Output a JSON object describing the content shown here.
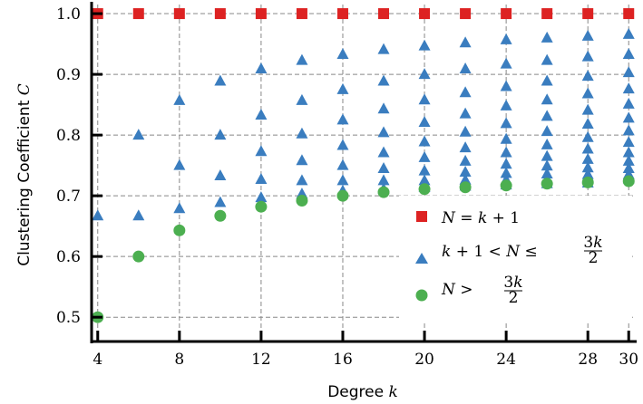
{
  "chart_data": {
    "type": "scatter",
    "xlabel": "Degree k",
    "ylabel": "Clustering Coefficient C",
    "xlim": [
      3.7,
      30.3
    ],
    "ylim": [
      0.46,
      1.015
    ],
    "xticks": [
      4,
      8,
      12,
      16,
      20,
      24,
      28,
      30
    ],
    "yticks": [
      0.5,
      0.6,
      0.7,
      0.8,
      0.9,
      1.0
    ],
    "ytick_labels": [
      "0.5",
      "0.6",
      "0.7",
      "0.8",
      "0.9",
      "1.0"
    ],
    "grid": true,
    "legend_position": "lower-right",
    "series": [
      {
        "name": "N = k + 1",
        "marker": "square",
        "color": "#dd2222",
        "points": [
          [
            4,
            1.0
          ],
          [
            6,
            1.0
          ],
          [
            8,
            1.0
          ],
          [
            10,
            1.0
          ],
          [
            12,
            1.0
          ],
          [
            14,
            1.0
          ],
          [
            16,
            1.0
          ],
          [
            18,
            1.0
          ],
          [
            20,
            1.0
          ],
          [
            22,
            1.0
          ],
          [
            24,
            1.0
          ],
          [
            26,
            1.0
          ],
          [
            28,
            1.0
          ],
          [
            30,
            1.0
          ]
        ]
      },
      {
        "name": "k + 1 < N ≤ 3k/2",
        "marker": "triangle",
        "color": "#3a7dbf",
        "points": [
          [
            4,
            0.667
          ],
          [
            6,
            0.8
          ],
          [
            6,
            0.667
          ],
          [
            8,
            0.857
          ],
          [
            8,
            0.75
          ],
          [
            8,
            0.679
          ],
          [
            10,
            0.889
          ],
          [
            10,
            0.8
          ],
          [
            10,
            0.733
          ],
          [
            10,
            0.689
          ],
          [
            12,
            0.909
          ],
          [
            12,
            0.833
          ],
          [
            12,
            0.773
          ],
          [
            12,
            0.727
          ],
          [
            12,
            0.697
          ],
          [
            14,
            0.923
          ],
          [
            14,
            0.857
          ],
          [
            14,
            0.802
          ],
          [
            14,
            0.758
          ],
          [
            14,
            0.725
          ],
          [
            14,
            0.703
          ],
          [
            16,
            0.933
          ],
          [
            16,
            0.875
          ],
          [
            16,
            0.825
          ],
          [
            16,
            0.783
          ],
          [
            16,
            0.75
          ],
          [
            16,
            0.725
          ],
          [
            16,
            0.708
          ],
          [
            18,
            0.941
          ],
          [
            18,
            0.889
          ],
          [
            18,
            0.843
          ],
          [
            18,
            0.804
          ],
          [
            18,
            0.771
          ],
          [
            18,
            0.745
          ],
          [
            18,
            0.725
          ],
          [
            18,
            0.711
          ],
          [
            20,
            0.947
          ],
          [
            20,
            0.9
          ],
          [
            20,
            0.858
          ],
          [
            20,
            0.821
          ],
          [
            20,
            0.789
          ],
          [
            20,
            0.763
          ],
          [
            20,
            0.741
          ],
          [
            20,
            0.725
          ],
          [
            20,
            0.714
          ],
          [
            22,
            0.952
          ],
          [
            22,
            0.909
          ],
          [
            22,
            0.87
          ],
          [
            22,
            0.835
          ],
          [
            22,
            0.805
          ],
          [
            22,
            0.779
          ],
          [
            22,
            0.757
          ],
          [
            22,
            0.739
          ],
          [
            22,
            0.726
          ],
          [
            22,
            0.716
          ],
          [
            24,
            0.957
          ],
          [
            24,
            0.917
          ],
          [
            24,
            0.88
          ],
          [
            24,
            0.848
          ],
          [
            24,
            0.819
          ],
          [
            24,
            0.793
          ],
          [
            24,
            0.771
          ],
          [
            24,
            0.752
          ],
          [
            24,
            0.737
          ],
          [
            24,
            0.726
          ],
          [
            24,
            0.718
          ],
          [
            26,
            0.96
          ],
          [
            26,
            0.923
          ],
          [
            26,
            0.889
          ],
          [
            26,
            0.858
          ],
          [
            26,
            0.831
          ],
          [
            26,
            0.806
          ],
          [
            26,
            0.784
          ],
          [
            26,
            0.765
          ],
          [
            26,
            0.749
          ],
          [
            26,
            0.736
          ],
          [
            26,
            0.726
          ],
          [
            26,
            0.72
          ],
          [
            28,
            0.963
          ],
          [
            28,
            0.929
          ],
          [
            28,
            0.897
          ],
          [
            28,
            0.868
          ],
          [
            28,
            0.841
          ],
          [
            28,
            0.818
          ],
          [
            28,
            0.796
          ],
          [
            28,
            0.777
          ],
          [
            28,
            0.76
          ],
          [
            28,
            0.746
          ],
          [
            28,
            0.735
          ],
          [
            28,
            0.727
          ],
          [
            28,
            0.721
          ],
          [
            30,
            0.966
          ],
          [
            30,
            0.933
          ],
          [
            30,
            0.903
          ],
          [
            30,
            0.876
          ],
          [
            30,
            0.851
          ],
          [
            30,
            0.828
          ],
          [
            30,
            0.807
          ],
          [
            30,
            0.788
          ],
          [
            30,
            0.771
          ],
          [
            30,
            0.757
          ],
          [
            30,
            0.745
          ],
          [
            30,
            0.735
          ],
          [
            30,
            0.728
          ]
        ]
      },
      {
        "name": "N > 3k/2",
        "marker": "circle",
        "color": "#4caf50",
        "points": [
          [
            4,
            0.5
          ],
          [
            6,
            0.6
          ],
          [
            8,
            0.643
          ],
          [
            10,
            0.667
          ],
          [
            12,
            0.682
          ],
          [
            14,
            0.692
          ],
          [
            16,
            0.7
          ],
          [
            18,
            0.706
          ],
          [
            20,
            0.711
          ],
          [
            22,
            0.714
          ],
          [
            24,
            0.717
          ],
          [
            26,
            0.72
          ],
          [
            28,
            0.722
          ],
          [
            30,
            0.724
          ]
        ]
      }
    ]
  }
}
